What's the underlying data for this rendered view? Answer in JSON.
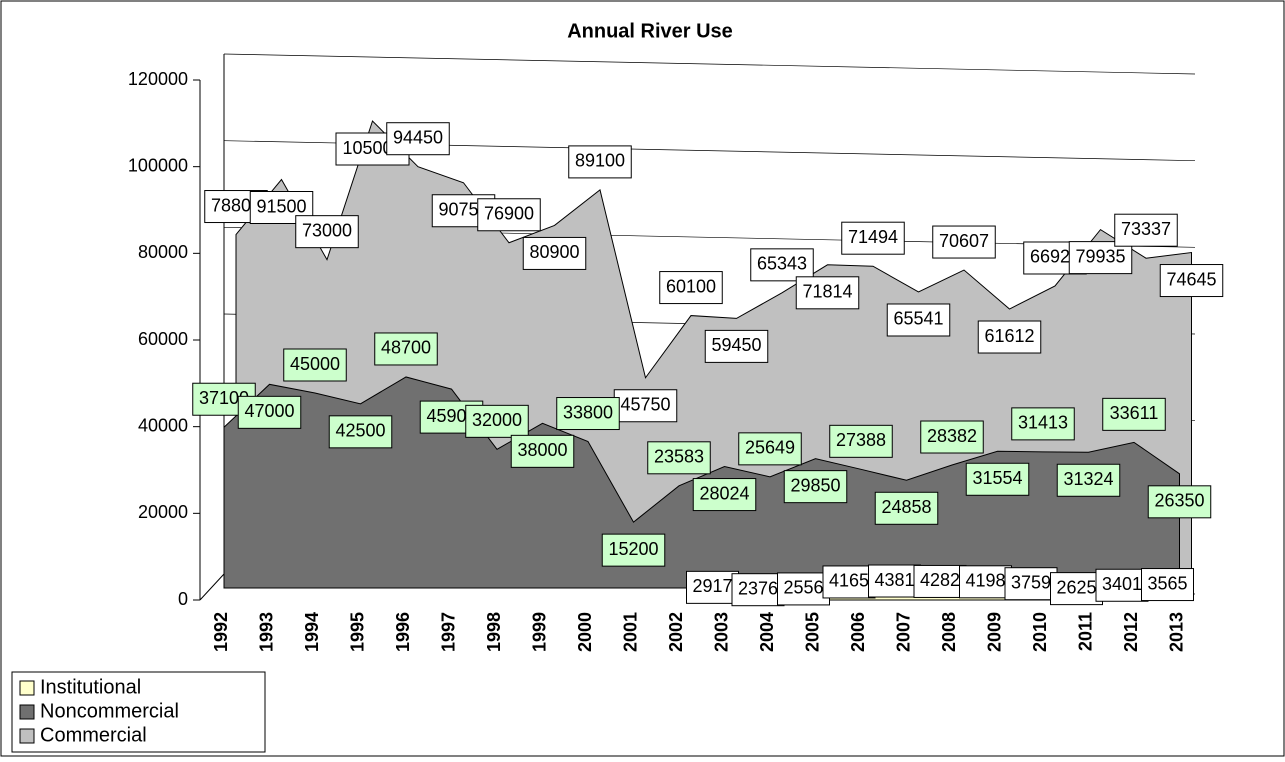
{
  "chart_data": {
    "type": "area3d",
    "title": "Annual River Use",
    "categories": [
      "1992",
      "1993",
      "1994",
      "1995",
      "1996",
      "1997",
      "1998",
      "1999",
      "2000",
      "2001",
      "2002",
      "2003",
      "2004",
      "2005",
      "2006",
      "2007",
      "2008",
      "2009",
      "2010",
      "2011",
      "2012",
      "2013"
    ],
    "series": [
      {
        "name": "Commercial",
        "color": "#c0c0c0",
        "label_color": "#ffffff",
        "values": [
          78800,
          91500,
          73000,
          105000,
          94450,
          90750,
          76900,
          80900,
          89100,
          45750,
          60100,
          59450,
          65343,
          71814,
          71494,
          65541,
          70607,
          61612,
          66925,
          79935,
          73337,
          74645
        ]
      },
      {
        "name": "Noncommercial",
        "color": "#707070",
        "label_color": "#ccffcc",
        "values": [
          37100,
          47000,
          45000,
          42500,
          48700,
          45900,
          32000,
          38000,
          33800,
          15200,
          23583,
          28024,
          25649,
          29850,
          27388,
          24858,
          28382,
          31554,
          31413,
          31324,
          33611,
          26350
        ]
      },
      {
        "name": "Institutional",
        "color": "#ffffcc",
        "label_color": "#ffffff",
        "values": [
          null,
          null,
          null,
          null,
          null,
          null,
          null,
          null,
          null,
          null,
          null,
          2917,
          2376,
          2556,
          4165,
          4381,
          4282,
          4198,
          3759,
          2625,
          3401,
          3565
        ]
      }
    ],
    "ylim": [
      0,
      120000
    ],
    "yticks": [
      0,
      20000,
      40000,
      60000,
      80000,
      100000,
      120000
    ],
    "grid": true,
    "legend": "bottom-left"
  }
}
